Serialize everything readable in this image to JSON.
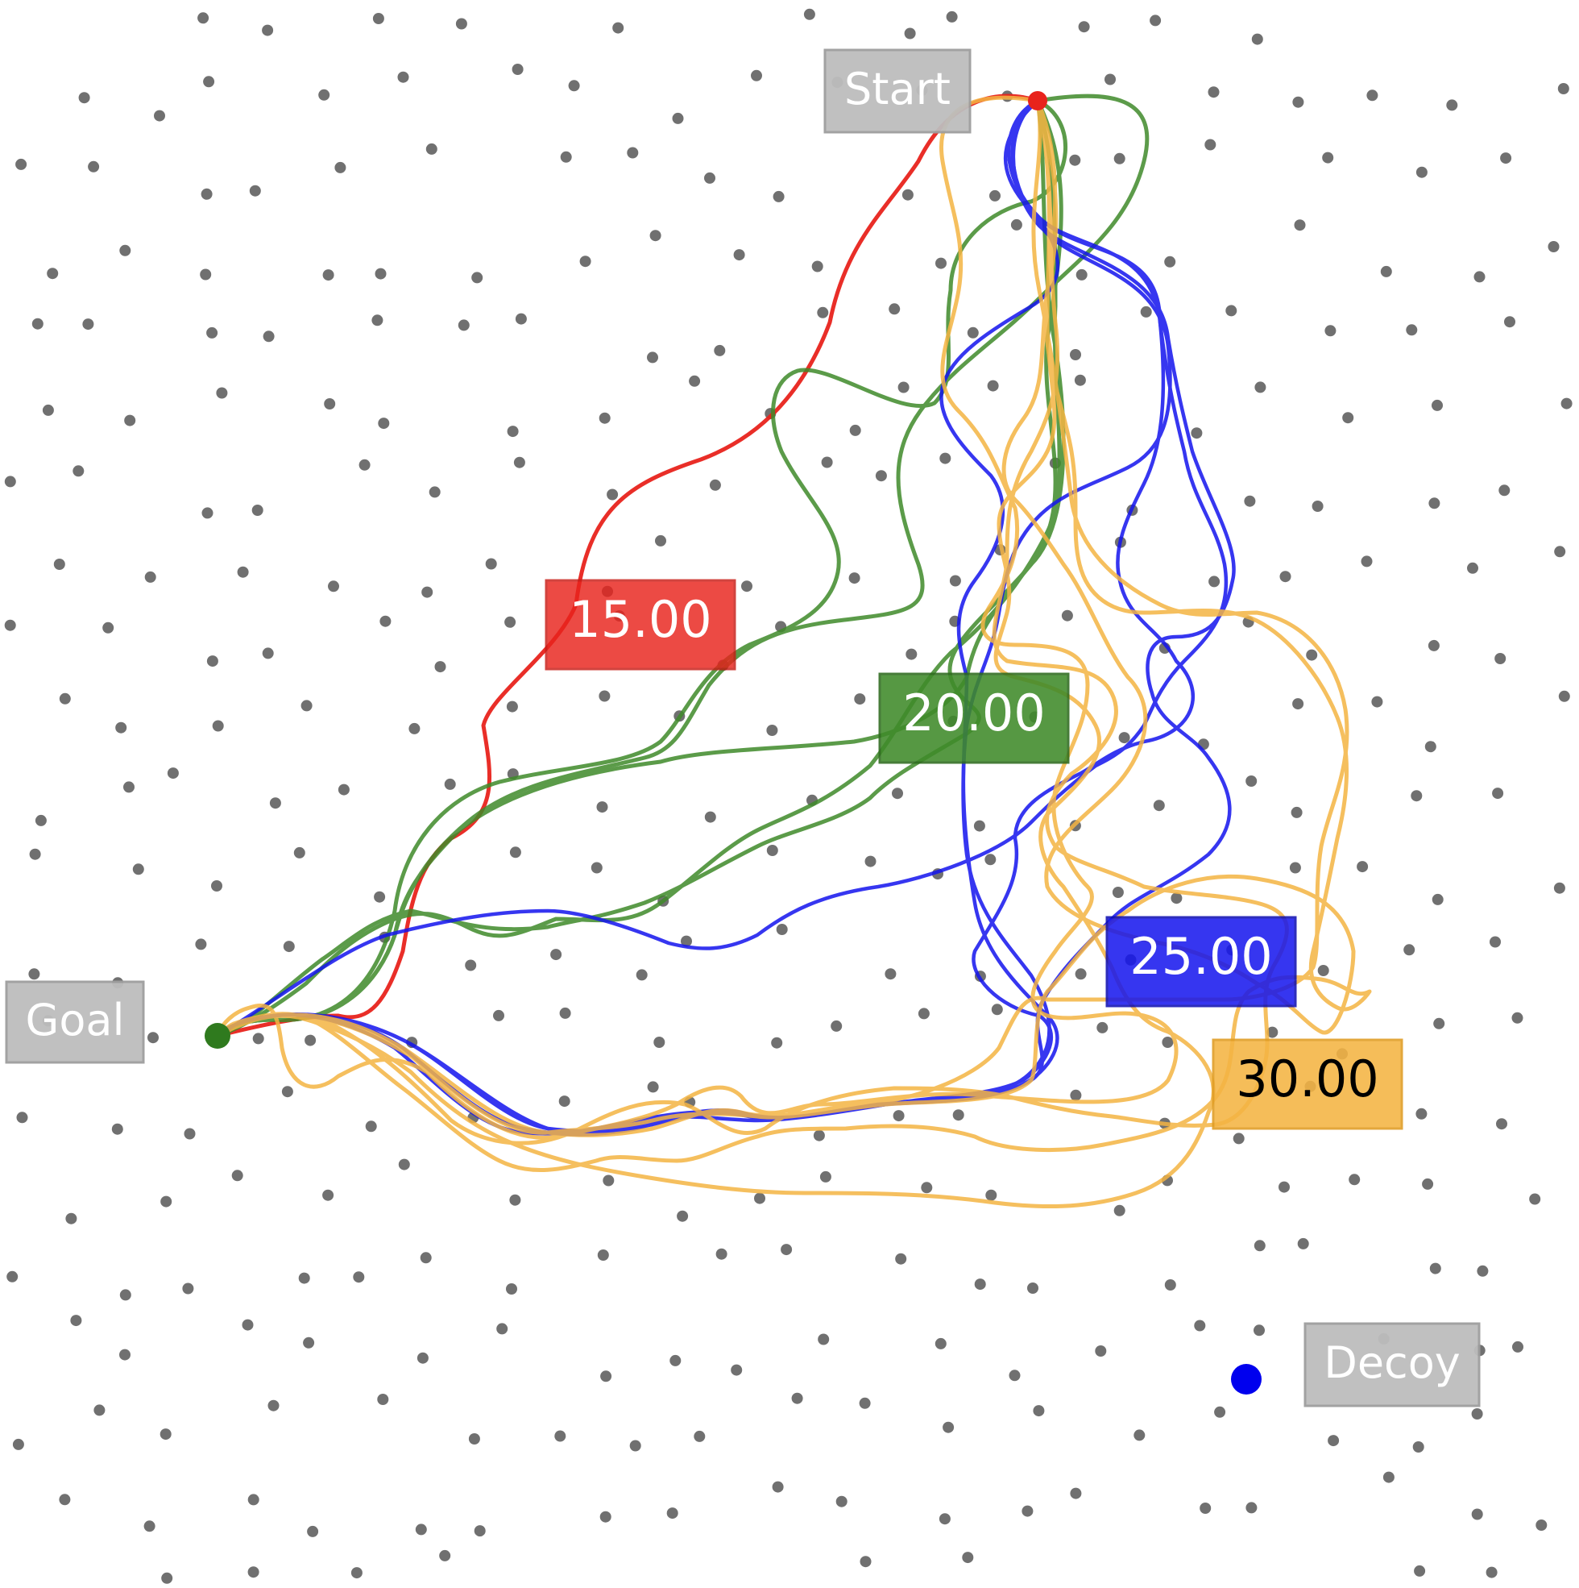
{
  "labels": {
    "start": "Start",
    "goal": "Goal",
    "decoy": "Decoy"
  },
  "scores": [
    {
      "text": "15.00",
      "color": "#e8231c",
      "text_color": "#ffffff"
    },
    {
      "text": "20.00",
      "color": "#3f8a2a",
      "text_color": "#ffffff"
    },
    {
      "text": "25.00",
      "color": "#1414ee",
      "text_color": "#ffffff"
    },
    {
      "text": "30.00",
      "color": "#f4b443",
      "text_color": "#000000"
    }
  ],
  "colors": {
    "label_box": "#bdbdbd",
    "label_border": "#9e9e9e",
    "obstacle_dot": "#707070",
    "decoy_marker": "#0000ee",
    "goal_marker": "#2f7a1e",
    "start_marker": "#e8231c"
  }
}
